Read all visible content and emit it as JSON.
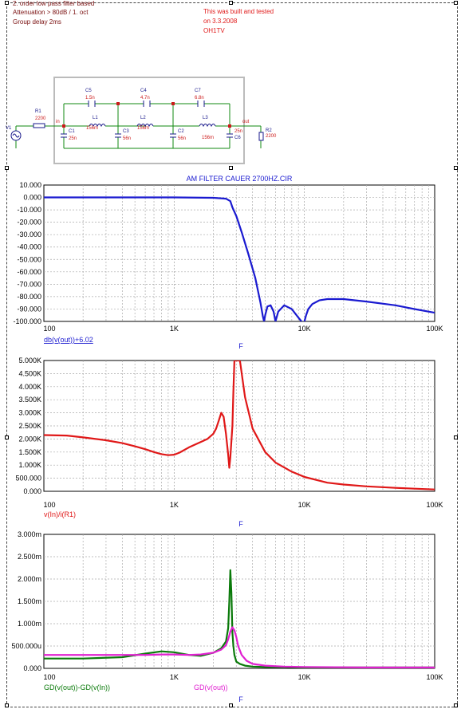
{
  "notes": {
    "line1": "2. order low pass filter based",
    "line2": "Attenuation > 80dB / 1. oct",
    "line3": "Group delay 2ms",
    "author1": "This was built and tested",
    "author2": "on 3.3.2008",
    "author3": "OH1TV"
  },
  "schematic": {
    "components": [
      {
        "name": "V1",
        "value": "",
        "kind": "source"
      },
      {
        "name": "R1",
        "value": "2200",
        "kind": "resistor"
      },
      {
        "name": "C1",
        "value": "25n",
        "kind": "cap"
      },
      {
        "name": "C5",
        "value": "1.5n",
        "kind": "cap"
      },
      {
        "name": "L1",
        "value": "156m",
        "kind": "ind"
      },
      {
        "name": "C3",
        "value": "56n",
        "kind": "cap"
      },
      {
        "name": "C4",
        "value": "4.7n",
        "kind": "cap"
      },
      {
        "name": "L2",
        "value": "156m",
        "kind": "ind"
      },
      {
        "name": "C2",
        "value": "56n",
        "kind": "cap"
      },
      {
        "name": "C7",
        "value": "6.8n",
        "kind": "cap"
      },
      {
        "name": "L3",
        "value": "156m",
        "kind": "ind"
      },
      {
        "name": "C6",
        "value": "25n",
        "kind": "cap"
      },
      {
        "name": "R2",
        "value": "2200",
        "kind": "resistor"
      }
    ],
    "net_in": "in",
    "net_out": "out"
  },
  "chart_data": [
    {
      "type": "line",
      "title": "AM FILTER CAUER 2700HZ.CIR",
      "xscale": "log",
      "xlim": [
        100,
        100000
      ],
      "xticks": [
        "100",
        "1K",
        "10K",
        "100K"
      ],
      "xlabel": "F",
      "ylim": [
        -100,
        10
      ],
      "yticks": [
        "10.000",
        "0.000",
        "-10.000",
        "-20.000",
        "-30.000",
        "-40.000",
        "-50.000",
        "-60.000",
        "-70.000",
        "-80.000",
        "-90.000",
        "-100.000"
      ],
      "grid": true,
      "series": [
        {
          "name": "db(v(out))+6.02",
          "color": "#1a1ad0",
          "x": [
            100,
            300,
            1000,
            2000,
            2500,
            2700,
            2800,
            3000,
            3300,
            3700,
            4200,
            4600,
            4800,
            4900,
            5000,
            5200,
            5500,
            5800,
            6000,
            6300,
            7000,
            8000,
            9000,
            9500,
            9800,
            10000,
            10300,
            10700,
            11500,
            13000,
            15000,
            20000,
            30000,
            50000,
            70000,
            100000
          ],
          "y": [
            0,
            0,
            0,
            -0.3,
            -1,
            -3,
            -8,
            -15,
            -28,
            -45,
            -65,
            -85,
            -96,
            -100,
            -95,
            -88,
            -87,
            -92,
            -100,
            -92,
            -87,
            -90,
            -97,
            -100,
            -104,
            -100,
            -95,
            -90,
            -86,
            -83,
            -82,
            -82,
            -84,
            -87,
            -90,
            -93
          ]
        }
      ]
    },
    {
      "type": "line",
      "xscale": "log",
      "xlim": [
        100,
        100000
      ],
      "xticks": [
        "100",
        "1K",
        "10K",
        "100K"
      ],
      "xlabel": "F",
      "ylim": [
        0,
        5000
      ],
      "yticks": [
        "5.000K",
        "4.500K",
        "4.000K",
        "3.500K",
        "3.000K",
        "2.500K",
        "2.000K",
        "1.500K",
        "1.000K",
        "500.000",
        "0.000"
      ],
      "grid": true,
      "series": [
        {
          "name": "v(In)/i(R1)",
          "color": "#e01818",
          "x": [
            100,
            150,
            200,
            300,
            400,
            500,
            600,
            700,
            800,
            900,
            1000,
            1100,
            1300,
            1500,
            1800,
            2000,
            2100,
            2200,
            2300,
            2400,
            2500,
            2600,
            2650,
            2700,
            2800,
            2850,
            2900,
            3000,
            3100,
            3200,
            3500,
            4000,
            5000,
            6000,
            8000,
            10000,
            15000,
            20000,
            30000,
            50000,
            70000,
            100000
          ],
          "y": [
            2150,
            2130,
            2060,
            1950,
            1840,
            1720,
            1610,
            1500,
            1420,
            1380,
            1400,
            1480,
            1680,
            1820,
            2000,
            2200,
            2400,
            2700,
            3000,
            2850,
            2200,
            1400,
            900,
            1300,
            2500,
            3800,
            5000,
            5000,
            5000,
            5000,
            3600,
            2400,
            1500,
            1100,
            750,
            550,
            330,
            260,
            190,
            130,
            100,
            70
          ]
        }
      ]
    },
    {
      "type": "line",
      "xscale": "log",
      "xlim": [
        100,
        100000
      ],
      "xticks": [
        "100",
        "1K",
        "10K",
        "100K"
      ],
      "xlabel": "F",
      "ylim": [
        0,
        0.003
      ],
      "yticks": [
        "3.000m",
        "2.500m",
        "2.000m",
        "1.500m",
        "1.000m",
        "500.000u",
        "0.000"
      ],
      "grid": true,
      "series": [
        {
          "name": "GD(v(out))-GD(v(In))",
          "color": "#0a7a0a",
          "x": [
            100,
            200,
            400,
            600,
            800,
            1000,
            1300,
            1600,
            2000,
            2300,
            2500,
            2600,
            2650,
            2700,
            2750,
            2800,
            2850,
            2900,
            3000,
            3200,
            3500,
            4000,
            5000,
            7000,
            10000,
            30000,
            100000
          ],
          "y": [
            0.00022,
            0.00022,
            0.00025,
            0.00033,
            0.00038,
            0.00036,
            0.0003,
            0.00028,
            0.00035,
            0.00045,
            0.0006,
            0.0009,
            0.0015,
            0.0022,
            0.0017,
            0.0008,
            0.0005,
            0.0003,
            0.00015,
            0.0001,
            6e-05,
            4e-05,
            3e-05,
            3e-05,
            2e-05,
            2e-05,
            2e-05
          ]
        },
        {
          "name": "GD(v(out))",
          "color": "#e020d0",
          "x": [
            100,
            200,
            400,
            600,
            800,
            1000,
            1300,
            1600,
            2000,
            2300,
            2500,
            2600,
            2700,
            2800,
            2900,
            3000,
            3100,
            3300,
            3600,
            4000,
            5000,
            7000,
            10000,
            30000,
            100000
          ],
          "y": [
            0.0003,
            0.0003,
            0.0003,
            0.0003,
            0.00031,
            0.00031,
            0.0003,
            0.00031,
            0.00035,
            0.00042,
            0.00052,
            0.00065,
            0.00082,
            0.00092,
            0.00085,
            0.0007,
            0.0005,
            0.0003,
            0.00017,
            0.0001,
            6e-05,
            4e-05,
            3e-05,
            2e-05,
            2e-05
          ]
        }
      ]
    }
  ]
}
